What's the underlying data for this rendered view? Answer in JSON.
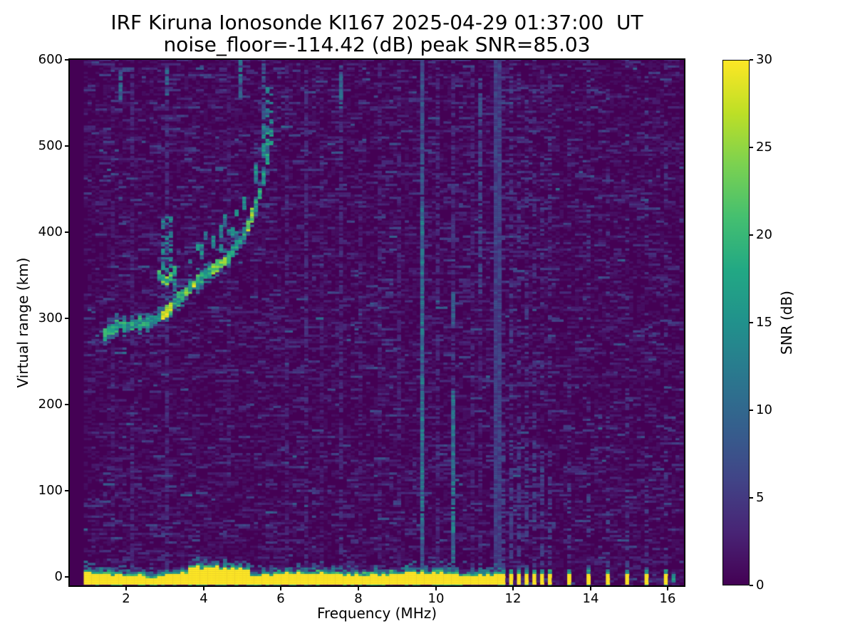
{
  "chart_data": {
    "type": "heatmap",
    "title_line1": "IRF Kiruna Ionosonde KI167 2025-04-29 01:37:00  UT",
    "title_line2": "noise_floor=-114.42 (dB) peak SNR=85.03",
    "station": "IRF Kiruna Ionosonde KI167",
    "timestamp_ut": "2025-04-29 01:37:00",
    "noise_floor_db": -114.42,
    "peak_snr_db": 85.03,
    "xlabel": "Frequency (MHz)",
    "ylabel": "Virtual range (km)",
    "colorbar_label": "SNR (dB)",
    "colormap": "viridis",
    "xlim": [
      0.54,
      16.42
    ],
    "ylim": [
      -10,
      600
    ],
    "snr_lim_db": [
      0,
      30
    ],
    "x_ticks": [
      2,
      4,
      6,
      8,
      10,
      12,
      14,
      16
    ],
    "y_ticks": [
      0,
      100,
      200,
      300,
      400,
      500,
      600
    ],
    "colorbar_ticks": [
      0,
      5,
      10,
      15,
      20,
      25,
      30
    ],
    "features": {
      "data_freq_range_mhz": [
        0.95,
        16.4
      ],
      "ground_echo_band": {
        "freq_range_mhz": [
          0.95,
          11.62
        ],
        "range_km": [
          -8,
          8
        ],
        "snr_db": 30,
        "thicker_freq_mhz": [
          3.55,
          5.25
        ]
      },
      "ground_echo_bars_mhz": [
        11.77,
        11.95,
        12.16,
        12.34,
        12.54,
        12.73,
        12.93,
        13.46,
        13.96,
        14.44,
        14.94,
        15.43,
        15.91
      ],
      "f_trace_points": [
        [
          1.45,
          283
        ],
        [
          1.6,
          289
        ],
        [
          1.8,
          292
        ],
        [
          2.0,
          293
        ],
        [
          2.2,
          294
        ],
        [
          2.4,
          296
        ],
        [
          2.6,
          298
        ],
        [
          2.8,
          301
        ],
        [
          3.0,
          306
        ],
        [
          3.15,
          313
        ],
        [
          3.3,
          321
        ],
        [
          3.45,
          328
        ],
        [
          3.6,
          334
        ],
        [
          3.75,
          340
        ],
        [
          3.9,
          346
        ],
        [
          4.05,
          351
        ],
        [
          4.2,
          356
        ],
        [
          4.35,
          361
        ],
        [
          4.5,
          366
        ],
        [
          4.65,
          373
        ],
        [
          4.8,
          381
        ],
        [
          4.95,
          391
        ],
        [
          5.1,
          403
        ],
        [
          5.25,
          419
        ],
        [
          5.4,
          438
        ],
        [
          5.5,
          455
        ],
        [
          5.6,
          474
        ],
        [
          5.68,
          492
        ],
        [
          5.73,
          505
        ]
      ],
      "f_trace_bright_spots_mhz": [
        [
          2.95,
          300
        ],
        [
          3.05,
          308
        ],
        [
          3.1,
          315
        ],
        [
          3.55,
          331
        ],
        [
          3.75,
          342
        ],
        [
          4.3,
          358
        ],
        [
          4.5,
          367
        ],
        [
          5.2,
          418
        ]
      ],
      "f_trace_cusp": {
        "points": [
          [
            2.85,
            352
          ],
          [
            2.95,
            346
          ],
          [
            3.05,
            344
          ],
          [
            3.15,
            349
          ],
          [
            3.25,
            357
          ],
          [
            3.35,
            364
          ]
        ],
        "vertical_spread": {
          "freq_mhz": [
            3.0,
            3.14
          ],
          "range_km": [
            355,
            418
          ]
        }
      },
      "trace_tip_spread": {
        "freq_mhz": [
          5.64,
          5.8
        ],
        "range_km": [
          500,
          568
        ]
      },
      "pre_trace_dashes": [
        [
          1.25,
          281
        ],
        [
          1.35,
          285
        ]
      ],
      "spread_f": {
        "freq_mhz": [
          3.2,
          5.75
        ],
        "offset_km": [
          8,
          46
        ],
        "snr_db": [
          8,
          17
        ]
      },
      "rfi_lines": [
        {
          "f": 1.62,
          "r": [
            -5,
            595
          ],
          "v": 2.5,
          "d": 0.4
        },
        {
          "f": 2.18,
          "r": [
            -5,
            595
          ],
          "v": 3.0,
          "d": 0.45
        },
        {
          "f": 1.9,
          "r": [
            555,
            585
          ],
          "v": 9.0,
          "d": 0.9
        },
        {
          "f": 3.08,
          "r": [
            -5,
            595
          ],
          "v": 3.5,
          "d": 0.55
        },
        {
          "f": 3.05,
          "r": [
            560,
            588
          ],
          "v": 9.0,
          "d": 0.8
        },
        {
          "f": 4.62,
          "r": [
            100,
            595
          ],
          "v": 2.5,
          "d": 0.35
        },
        {
          "f": 4.98,
          "r": [
            558,
            600
          ],
          "v": 10.0,
          "d": 0.9
        },
        {
          "f": 5.52,
          "r": [
            520,
            600
          ],
          "v": 7.0,
          "d": 0.6
        },
        {
          "f": 6.12,
          "r": [
            -5,
            595
          ],
          "v": 3.0,
          "d": 0.45
        },
        {
          "f": 6.62,
          "r": [
            -5,
            595
          ],
          "v": 3.5,
          "d": 0.5
        },
        {
          "f": 7.1,
          "r": [
            -5,
            595
          ],
          "v": 2.5,
          "d": 0.35
        },
        {
          "f": 7.58,
          "r": [
            -5,
            595
          ],
          "v": 3.5,
          "d": 0.5
        },
        {
          "f": 7.58,
          "r": [
            545,
            592
          ],
          "v": 9.0,
          "d": 0.85
        },
        {
          "f": 8.1,
          "r": [
            -5,
            595
          ],
          "v": 2.5,
          "d": 0.35
        },
        {
          "f": 8.55,
          "r": [
            -5,
            595
          ],
          "v": 3.0,
          "d": 0.4
        },
        {
          "f": 9.0,
          "r": [
            -5,
            595
          ],
          "v": 3.0,
          "d": 0.45
        },
        {
          "f": 9.62,
          "r": [
            -5,
            600
          ],
          "v": 7.0,
          "d": 0.9
        },
        {
          "f": 9.62,
          "r": [
            40,
            430
          ],
          "v": 10.5,
          "d": 0.95
        },
        {
          "f": 10.02,
          "r": [
            -5,
            595
          ],
          "v": 3.5,
          "d": 0.45
        },
        {
          "f": 10.48,
          "r": [
            -5,
            215
          ],
          "v": 10.5,
          "d": 0.95
        },
        {
          "f": 10.48,
          "r": [
            215,
            600
          ],
          "v": 4.0,
          "d": 0.45
        },
        {
          "f": 10.48,
          "r": [
            290,
            330
          ],
          "v": 8.0,
          "d": 0.9
        },
        {
          "f": 10.9,
          "r": [
            -5,
            595
          ],
          "v": 3.0,
          "d": 0.35
        },
        {
          "f": 11.18,
          "r": [
            330,
            580
          ],
          "v": 6.0,
          "d": 0.65
        },
        {
          "f": 11.18,
          "r": [
            -5,
            330
          ],
          "v": 3.0,
          "d": 0.35
        },
        {
          "f": 11.55,
          "r": [
            -5,
            600
          ],
          "v": 5.5,
          "d": 1.0,
          "w": 2
        },
        {
          "f": 16.18,
          "r": [
            -6,
            3
          ],
          "v": 14.0,
          "d": 1.0
        }
      ],
      "noise": {
        "background_snr_db": [
          0,
          1.5
        ],
        "speckle_snr_db": [
          2,
          8
        ],
        "speckle_density": 0.11
      }
    }
  }
}
